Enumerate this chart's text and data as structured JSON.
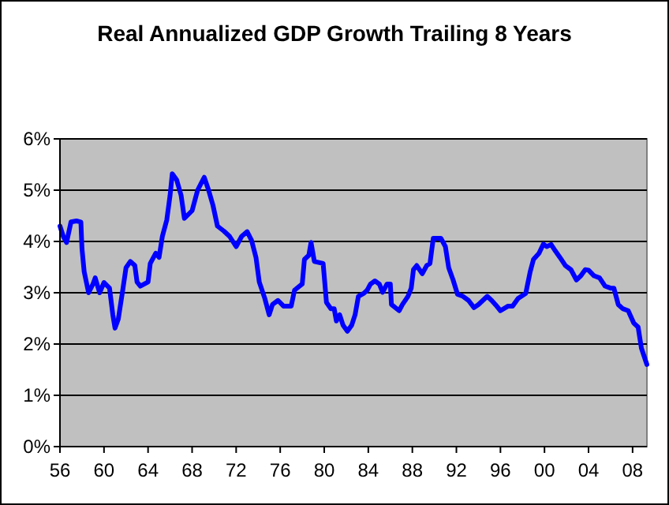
{
  "chart_data": {
    "type": "line",
    "title": "Real Annualized GDP Growth Trailing 8 Years",
    "x": [
      1956.0,
      1956.3,
      1956.6,
      1957.0,
      1957.5,
      1957.9,
      1958.0,
      1958.2,
      1958.6,
      1959.0,
      1959.2,
      1959.6,
      1960.0,
      1960.5,
      1960.8,
      1961.0,
      1961.3,
      1961.7,
      1962.0,
      1962.4,
      1962.8,
      1963.0,
      1963.3,
      1964.0,
      1964.2,
      1964.7,
      1965.0,
      1965.3,
      1965.7,
      1966.0,
      1966.2,
      1966.6,
      1967.0,
      1967.3,
      1968.0,
      1968.5,
      1969.1,
      1969.5,
      1969.9,
      1970.3,
      1970.9,
      1971.4,
      1972.0,
      1972.5,
      1973.0,
      1973.4,
      1973.8,
      1974.1,
      1974.6,
      1975.0,
      1975.3,
      1975.8,
      1976.3,
      1977.0,
      1977.3,
      1978.0,
      1978.2,
      1978.6,
      1978.8,
      1979.1,
      1979.9,
      1980.2,
      1980.6,
      1980.9,
      1981.1,
      1981.4,
      1981.7,
      1982.1,
      1982.5,
      1982.8,
      1983.1,
      1983.6,
      1983.9,
      1984.2,
      1984.6,
      1985.0,
      1985.3,
      1985.7,
      1986.0,
      1986.1,
      1986.8,
      1987.1,
      1987.6,
      1987.9,
      1988.1,
      1988.4,
      1988.9,
      1989.3,
      1989.6,
      1989.9,
      1990.2,
      1990.6,
      1991.0,
      1991.3,
      1991.7,
      1992.1,
      1992.6,
      1993.1,
      1993.6,
      1994.0,
      1994.8,
      1995.2,
      1995.7,
      1996.0,
      1996.7,
      1997.1,
      1997.6,
      1998.3,
      1998.7,
      1999.0,
      1999.5,
      1999.9,
      2000.2,
      2000.6,
      2001.0,
      2001.4,
      2001.9,
      2002.4,
      2002.9,
      2003.3,
      2003.7,
      2004.0,
      2004.5,
      2005.0,
      2005.5,
      2006.0,
      2006.3,
      2006.7,
      2007.1,
      2007.6,
      2008.1,
      2008.5,
      2008.8,
      2009.3
    ],
    "series": [
      {
        "color": "#0000ff",
        "values": [
          4.3,
          4.1,
          3.98,
          4.38,
          4.4,
          4.38,
          3.86,
          3.41,
          3.0,
          3.17,
          3.29,
          3.0,
          3.2,
          3.09,
          2.57,
          2.31,
          2.49,
          3.05,
          3.49,
          3.61,
          3.53,
          3.21,
          3.13,
          3.21,
          3.57,
          3.77,
          3.69,
          4.1,
          4.42,
          4.9,
          5.32,
          5.2,
          4.9,
          4.45,
          4.6,
          5.0,
          5.25,
          5.0,
          4.7,
          4.3,
          4.2,
          4.1,
          3.9,
          4.1,
          4.19,
          4.02,
          3.69,
          3.21,
          2.89,
          2.57,
          2.77,
          2.85,
          2.74,
          2.74,
          3.05,
          3.17,
          3.65,
          3.73,
          3.98,
          3.61,
          3.57,
          2.81,
          2.69,
          2.69,
          2.45,
          2.57,
          2.37,
          2.25,
          2.37,
          2.57,
          2.93,
          2.99,
          3.05,
          3.17,
          3.23,
          3.17,
          3.01,
          3.17,
          3.17,
          2.77,
          2.65,
          2.77,
          2.93,
          3.09,
          3.45,
          3.53,
          3.37,
          3.53,
          3.57,
          4.06,
          4.06,
          4.06,
          3.9,
          3.49,
          3.25,
          2.97,
          2.93,
          2.85,
          2.71,
          2.77,
          2.93,
          2.85,
          2.73,
          2.65,
          2.74,
          2.74,
          2.89,
          2.99,
          3.41,
          3.65,
          3.77,
          3.95,
          3.9,
          3.94,
          3.81,
          3.69,
          3.53,
          3.45,
          3.25,
          3.33,
          3.45,
          3.44,
          3.33,
          3.29,
          3.13,
          3.09,
          3.09,
          2.77,
          2.69,
          2.65,
          2.41,
          2.33,
          1.92,
          1.6
        ]
      }
    ],
    "xlim": [
      1956,
      2009.3
    ],
    "xticks": [
      {
        "value": 1956,
        "label": "56"
      },
      {
        "value": 1960,
        "label": "60"
      },
      {
        "value": 1964,
        "label": "64"
      },
      {
        "value": 1968,
        "label": "68"
      },
      {
        "value": 1972,
        "label": "72"
      },
      {
        "value": 1976,
        "label": "76"
      },
      {
        "value": 1980,
        "label": "80"
      },
      {
        "value": 1984,
        "label": "84"
      },
      {
        "value": 1988,
        "label": "88"
      },
      {
        "value": 1992,
        "label": "92"
      },
      {
        "value": 1996,
        "label": "96"
      },
      {
        "value": 2000,
        "label": "00"
      },
      {
        "value": 2004,
        "label": "04"
      },
      {
        "value": 2008,
        "label": "08"
      }
    ],
    "ylim": [
      0,
      6
    ],
    "yticks": [
      {
        "value": 0,
        "label": "0%"
      },
      {
        "value": 1,
        "label": "1%"
      },
      {
        "value": 2,
        "label": "2%"
      },
      {
        "value": 3,
        "label": "3%"
      },
      {
        "value": 4,
        "label": "4%"
      },
      {
        "value": 5,
        "label": "5%"
      },
      {
        "value": 6,
        "label": "6%"
      }
    ],
    "grid": "y",
    "marker": "none",
    "line_style": "solid"
  }
}
